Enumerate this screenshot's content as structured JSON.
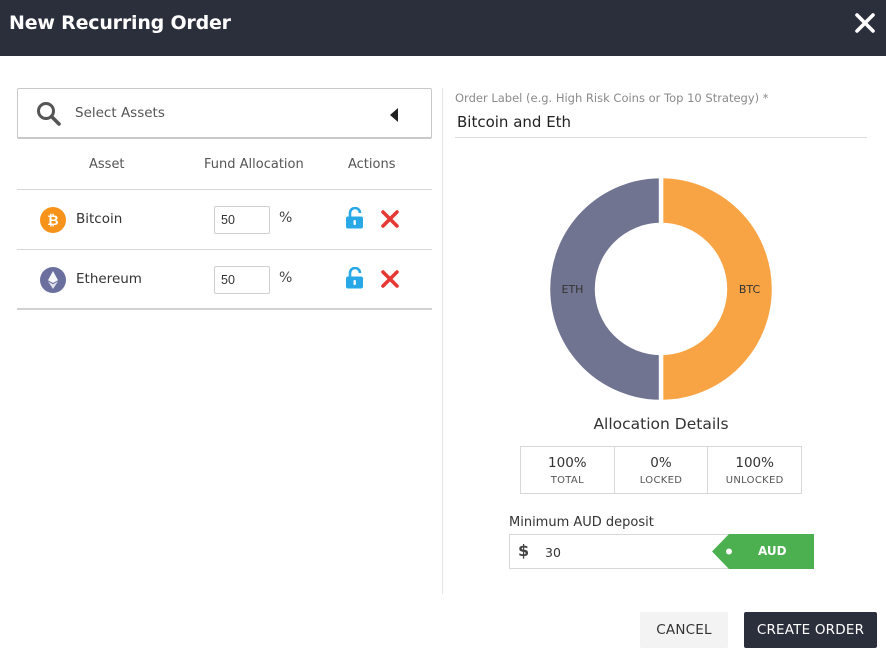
{
  "dialog": {
    "title": "New Recurring Order",
    "close_icon": "close-icon"
  },
  "search": {
    "placeholder": "Select Assets",
    "icon": "search-icon",
    "toggle_icon": "caret-left-icon"
  },
  "table": {
    "headers": [
      "Asset",
      "Fund Allocation",
      "Actions"
    ],
    "rows": [
      {
        "name": "Bitcoin",
        "allocation": "50",
        "unit": "%",
        "coin_icon": "bitcoin-icon",
        "coin_color": "#f7931a",
        "lock_icon": "unlock-icon",
        "delete_icon": "delete-icon"
      },
      {
        "name": "Ethereum",
        "allocation": "50",
        "unit": "%",
        "coin_icon": "ethereum-icon",
        "coin_color": "#627eea",
        "lock_icon": "unlock-icon",
        "delete_icon": "delete-icon"
      }
    ]
  },
  "order_label": {
    "label": "Order Label (e.g. High Risk Coins or Top 10 Strategy) *",
    "value": "Bitcoin and Eth"
  },
  "chart_data": {
    "type": "pie",
    "categories": [
      "BTC",
      "ETH"
    ],
    "values": [
      50,
      50
    ],
    "colors": [
      "#f9a444",
      "#717491"
    ],
    "donut": true
  },
  "allocation_details": {
    "title": "Allocation Details",
    "stats": [
      {
        "value": "100%",
        "label": "TOTAL"
      },
      {
        "value": "0%",
        "label": "LOCKED"
      },
      {
        "value": "100%",
        "label": "UNLOCKED"
      }
    ]
  },
  "deposit": {
    "label": "Minimum AUD deposit",
    "currency_symbol": "$",
    "amount": "30",
    "currency": "AUD",
    "tag_color": "#4caf50"
  },
  "buttons": {
    "cancel": "CANCEL",
    "create": "CREATE ORDER"
  },
  "colors": {
    "header_bg": "#2b2f3b",
    "lock_blue": "#29a8e8",
    "delete_red": "#e53935"
  }
}
